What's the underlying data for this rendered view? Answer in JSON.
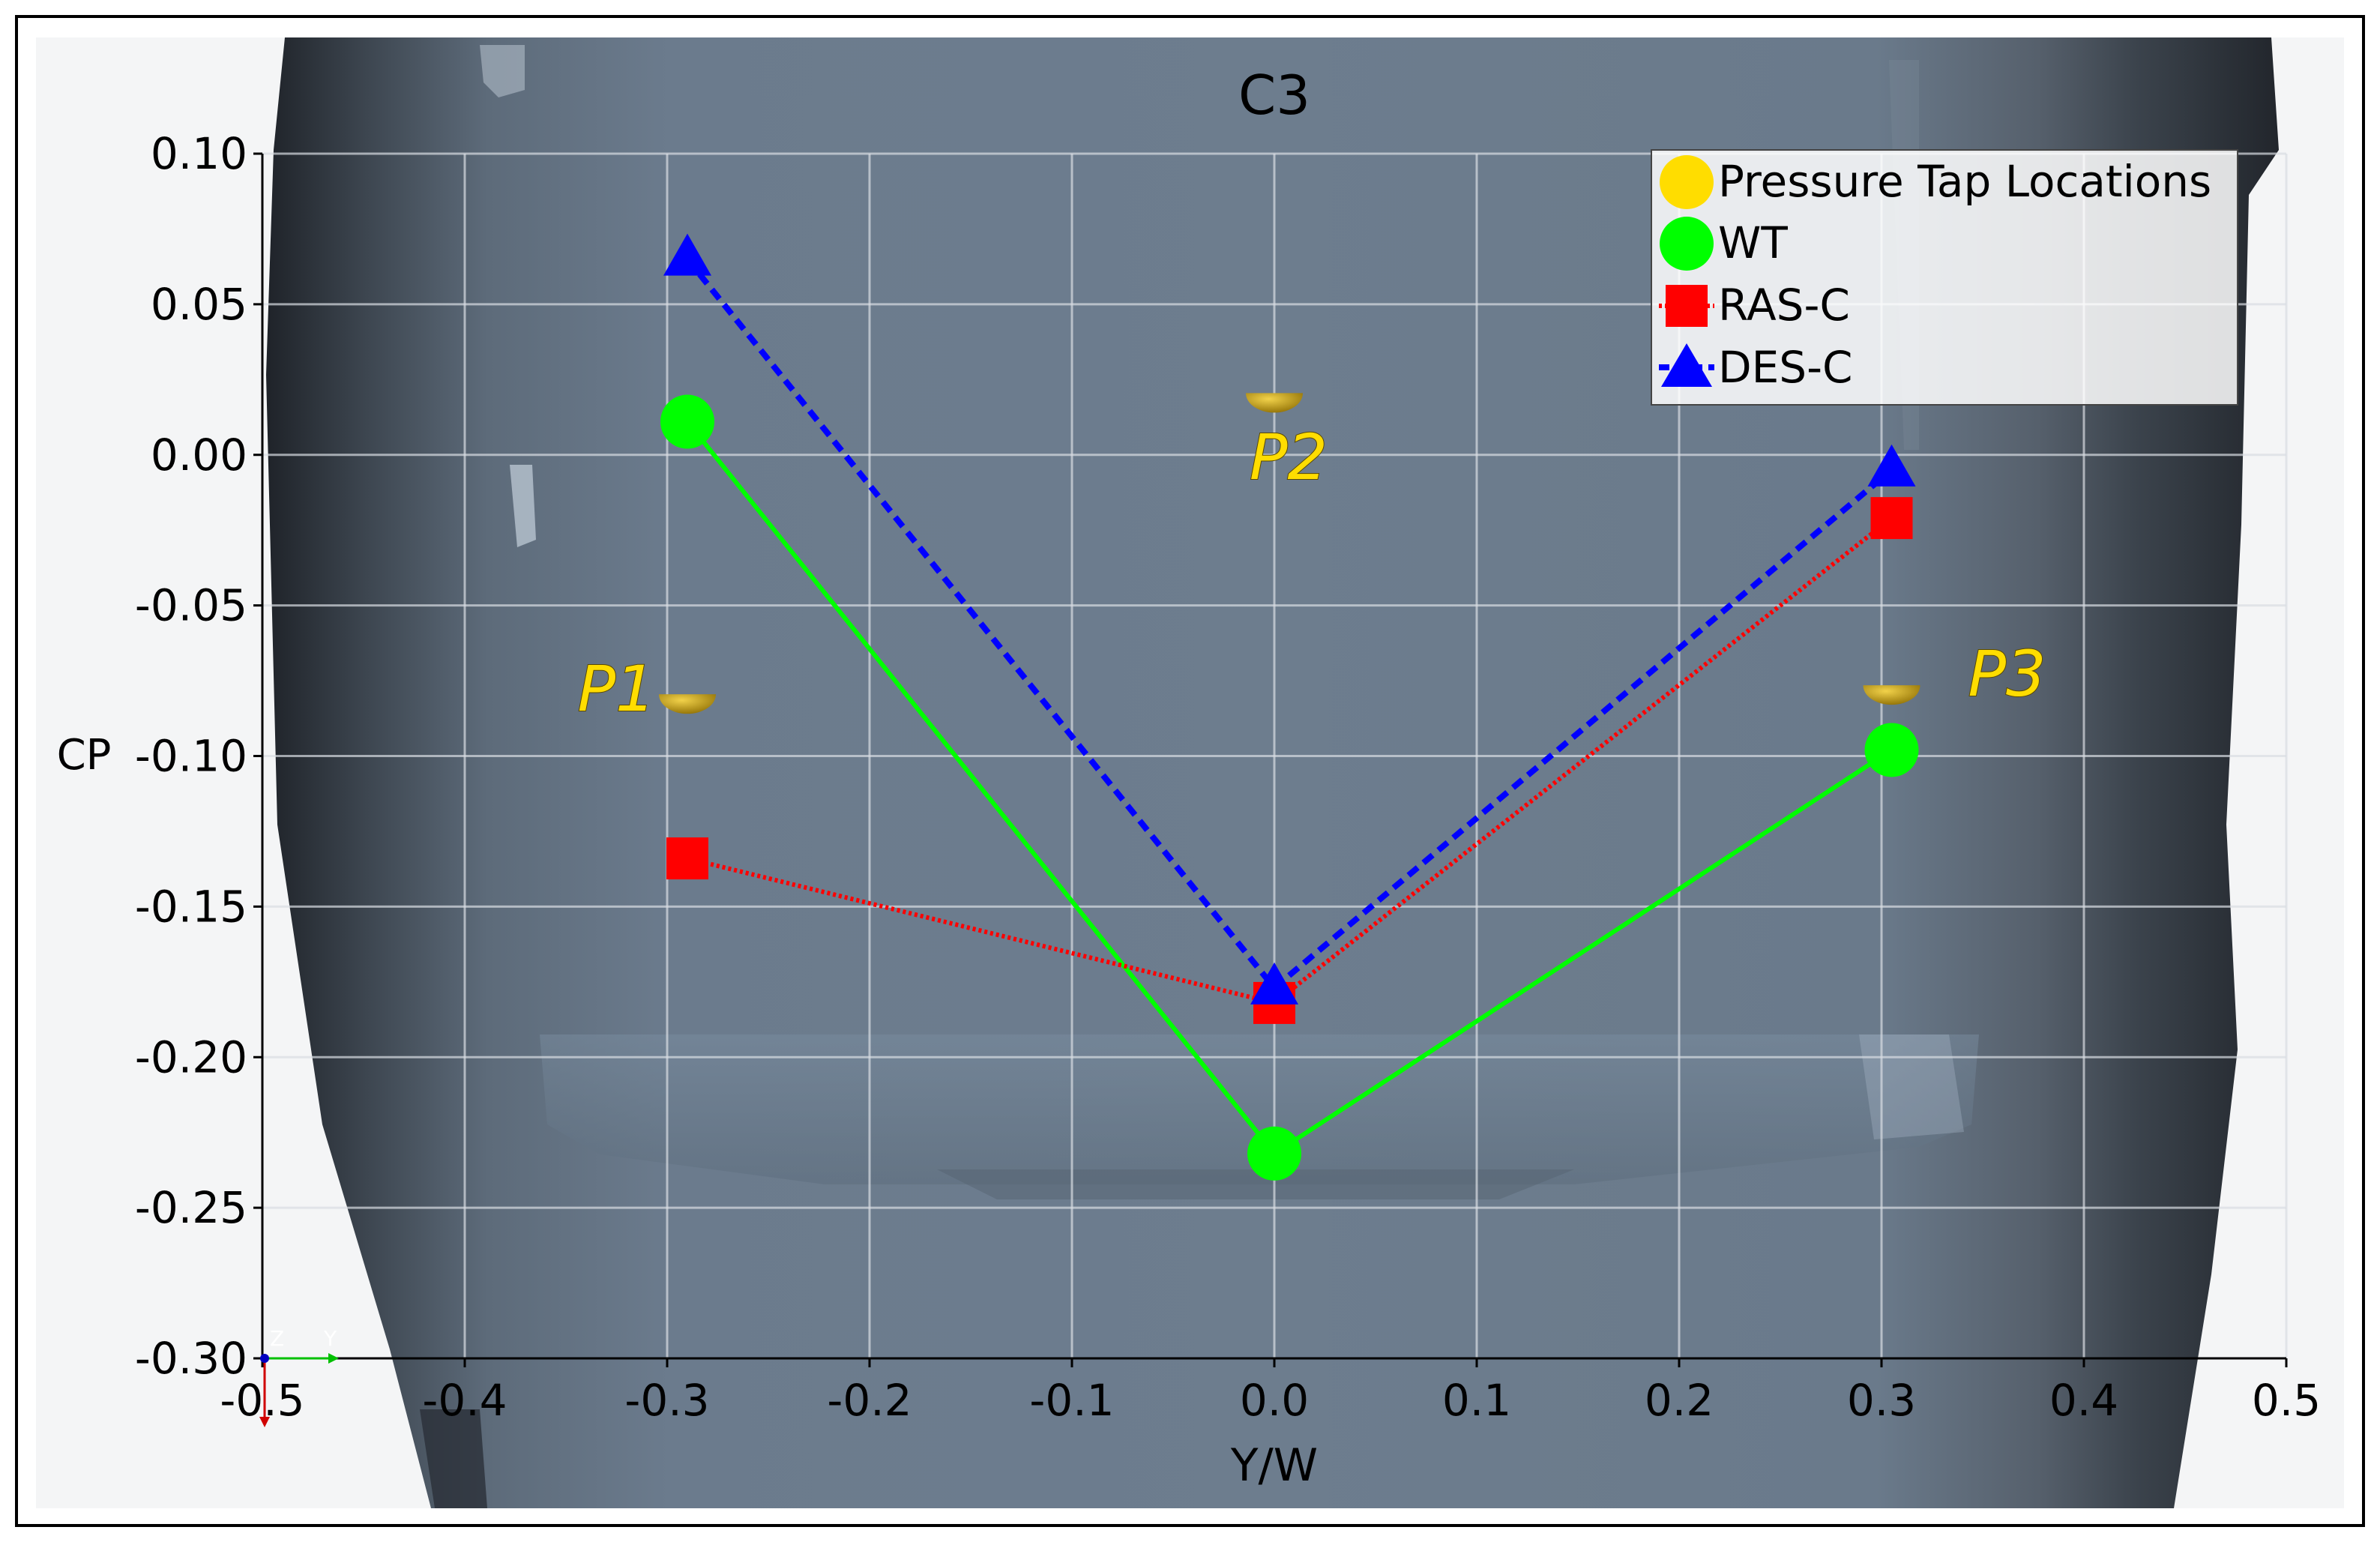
{
  "chart_data": {
    "type": "line",
    "title": "C3",
    "xlabel": "Y/W",
    "ylabel": "CP",
    "xlim": [
      -0.5,
      0.5
    ],
    "ylim": [
      -0.3,
      0.1
    ],
    "xticks": [
      -0.5,
      -0.4,
      -0.3,
      -0.2,
      -0.1,
      0.0,
      0.1,
      0.2,
      0.3,
      0.4,
      0.5
    ],
    "xtick_labels": [
      "-0.5",
      "-0.4",
      "-0.3",
      "-0.2",
      "-0.1",
      "0.0",
      "0.1",
      "0.2",
      "0.3",
      "0.4",
      "0.5"
    ],
    "yticks": [
      0.1,
      0.05,
      0.0,
      -0.05,
      -0.1,
      -0.15,
      -0.2,
      -0.25,
      -0.3
    ],
    "ytick_labels": [
      "0.10",
      "0.05",
      "0.00",
      "-0.05",
      "-0.10",
      "-0.15",
      "-0.20",
      "-0.25",
      "-0.30"
    ],
    "grid": true,
    "legend_position": "top-right",
    "x": [
      -0.29,
      0.0,
      0.305
    ],
    "series": [
      {
        "name": "WT",
        "values": [
          0.011,
          -0.232,
          -0.098
        ],
        "color": "#00ff00",
        "marker": "circle",
        "line": "solid"
      },
      {
        "name": "RAS-C",
        "values": [
          -0.134,
          -0.182,
          -0.021
        ],
        "color": "#ff0000",
        "marker": "square",
        "line": "dotted"
      },
      {
        "name": "DES-C",
        "values": [
          0.065,
          -0.177,
          -0.005
        ],
        "color": "#0000ff",
        "marker": "triangle",
        "line": "dashed"
      }
    ],
    "legend_extra": {
      "name": "Pressure Tap Locations",
      "color": "#ffdd00",
      "marker": "circle"
    },
    "annotations": [
      {
        "text": "P1",
        "x": -0.325,
        "y": -0.085,
        "color": "#ffdd00"
      },
      {
        "text": "P2",
        "x": 0.007,
        "y": -0.008,
        "color": "#ffdd00"
      },
      {
        "text": "P3",
        "x": 0.362,
        "y": -0.08,
        "color": "#ffdd00"
      }
    ],
    "axis_triad": {
      "labels": [
        "Z",
        "Y"
      ]
    }
  },
  "colors": {
    "background_body": "#687a8c",
    "background_dark": "#2b3038",
    "tap_marker": "#c8a000"
  }
}
